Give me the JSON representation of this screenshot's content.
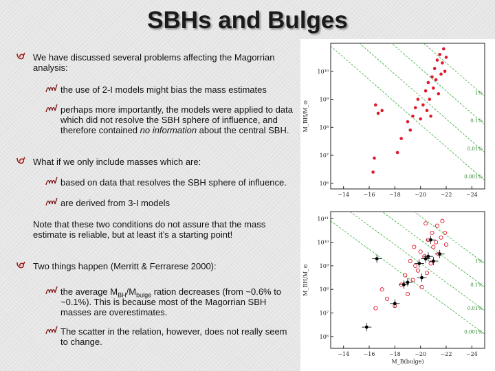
{
  "title": "SBHs and Bulges",
  "bullets": {
    "b1": "We have discussed several problems affecting the Magorrian analysis:",
    "b1_sub1": "the use of 2-I models might bias the mass estimates",
    "b1_sub2_pre": "perhaps more importantly, the models were applied to data which did not resolve the SBH sphere of influence, and therefore contained ",
    "b1_sub2_italic1": "no",
    "b1_sub2_italic2": "information",
    "b1_sub2_post": " about the central SBH.",
    "b2": "What if we only include masses which are:",
    "b2_sub1": "based on data that resolves the SBH sphere of influence.",
    "b2_sub2": "are derived from 3-I models",
    "note": "Note that these two conditions do not assure that the mass estimate is reliable, but at least it’s a starting point!",
    "b3": "Two things happen (Merritt & Ferrarese 2000):",
    "b3_sub1_a": "the average M",
    "b3_sub1_sub1": "BH",
    "b3_sub1_b": "/M",
    "b3_sub1_sub2": "bulge",
    "b3_sub1_c": " ration decreases (from ~0.6% to ~0.1%). This is because most of the Magorrian SBH masses are overestimates.",
    "b3_sub2": "The scatter in the relation, however, does not really seem to change."
  },
  "chart_data": [
    {
      "type": "scatter",
      "title": "",
      "xlabel": "",
      "ylabel": "M_BH/M_⊙",
      "xlim": [
        -13,
        -25
      ],
      "ylim": [
        5.8,
        11
      ],
      "xticks": [
        "−14",
        "−16",
        "−18",
        "−20",
        "−22",
        "−24"
      ],
      "yticks": [
        "10⁶",
        "10⁷",
        "10⁸",
        "10⁹",
        "10¹⁰"
      ],
      "ratio_lines": [
        "1%",
        "0.1%",
        "0.01%",
        "0.001%"
      ],
      "series": [
        {
          "marker": "filled-circle",
          "color": "#e0182c",
          "points": [
            [
              -16.3,
              6.4
            ],
            [
              -16.4,
              6.9
            ],
            [
              -16.5,
              8.8
            ],
            [
              -16.7,
              8.5
            ],
            [
              -17.0,
              8.6
            ],
            [
              -18.2,
              7.1
            ],
            [
              -18.5,
              7.6
            ],
            [
              -19.0,
              8.2
            ],
            [
              -19.2,
              7.9
            ],
            [
              -19.4,
              8.4
            ],
            [
              -19.6,
              8.7
            ],
            [
              -19.8,
              9.0
            ],
            [
              -20.0,
              8.3
            ],
            [
              -20.2,
              8.8
            ],
            [
              -20.4,
              9.3
            ],
            [
              -20.5,
              8.6
            ],
            [
              -20.6,
              9.6
            ],
            [
              -20.7,
              9.0
            ],
            [
              -20.8,
              8.4
            ],
            [
              -20.9,
              9.8
            ],
            [
              -21.0,
              9.4
            ],
            [
              -21.1,
              10.1
            ],
            [
              -21.2,
              9.7
            ],
            [
              -21.3,
              10.4
            ],
            [
              -21.4,
              9.2
            ],
            [
              -21.5,
              10.6
            ],
            [
              -21.6,
              9.9
            ],
            [
              -21.7,
              10.3
            ],
            [
              -21.8,
              10.8
            ],
            [
              -21.9,
              10.0
            ],
            [
              -22.0,
              10.5
            ]
          ]
        }
      ]
    },
    {
      "type": "scatter",
      "title": "",
      "xlabel": "M_B(bulge)",
      "ylabel": "M_BH/M_⊙",
      "xlim": [
        -13,
        -25
      ],
      "ylim": [
        5.5,
        11.3
      ],
      "xticks": [
        "−14",
        "−16",
        "−18",
        "−20",
        "−22",
        "−24"
      ],
      "yticks": [
        "10⁶",
        "10⁷",
        "10⁸",
        "10⁹",
        "10¹⁰",
        "10¹¹"
      ],
      "ratio_lines": [
        "1%",
        "0.1%",
        "0.01%",
        "0.001%"
      ],
      "series": [
        {
          "marker": "open-circle",
          "color": "#e0182c",
          "points": [
            [
              -16.5,
              7.2
            ],
            [
              -17.0,
              8.0
            ],
            [
              -17.4,
              7.6
            ],
            [
              -18.0,
              7.3
            ],
            [
              -18.5,
              8.2
            ],
            [
              -18.8,
              8.6
            ],
            [
              -19.0,
              7.8
            ],
            [
              -19.2,
              9.2
            ],
            [
              -19.4,
              8.4
            ],
            [
              -19.6,
              9.0
            ],
            [
              -19.8,
              8.8
            ],
            [
              -20.0,
              9.6
            ],
            [
              -20.1,
              8.1
            ],
            [
              -20.3,
              9.4
            ],
            [
              -20.5,
              8.7
            ],
            [
              -20.6,
              10.1
            ],
            [
              -20.8,
              9.1
            ],
            [
              -20.9,
              10.4
            ],
            [
              -21.0,
              9.8
            ],
            [
              -21.2,
              10.0
            ],
            [
              -21.3,
              10.7
            ],
            [
              -21.4,
              9.5
            ],
            [
              -21.6,
              10.2
            ],
            [
              -21.7,
              10.9
            ],
            [
              -21.9,
              10.4
            ],
            [
              -22.0,
              9.9
            ],
            [
              -20.4,
              10.8
            ],
            [
              -19.5,
              9.8
            ]
          ]
        },
        {
          "marker": "filled-circle-errorbar",
          "color": "#000000",
          "points": [
            [
              -15.8,
              6.4
            ],
            [
              -16.6,
              9.3
            ],
            [
              -18.0,
              7.4
            ],
            [
              -18.7,
              8.2
            ],
            [
              -19.0,
              8.3
            ],
            [
              -19.9,
              9.1
            ],
            [
              -20.1,
              8.5
            ],
            [
              -20.4,
              9.3
            ],
            [
              -20.6,
              9.4
            ],
            [
              -20.8,
              10.1
            ],
            [
              -21.0,
              9.2
            ],
            [
              -21.5,
              9.5
            ]
          ]
        }
      ]
    }
  ]
}
